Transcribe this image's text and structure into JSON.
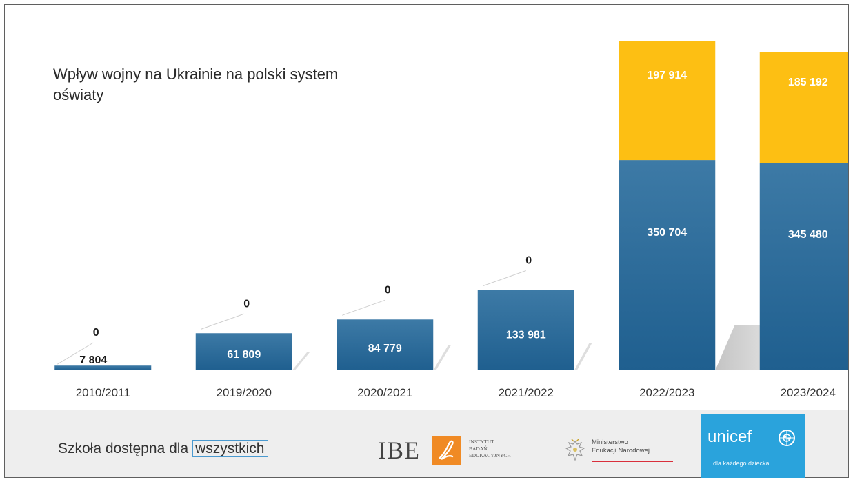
{
  "chart_data": {
    "type": "bar",
    "stacked": true,
    "title": "Wpływ wojny na Ukrainie na polski system oświaty",
    "categories": [
      "2010/2011",
      "2019/2020",
      "2020/2021",
      "2021/2022",
      "2022/2023",
      "2023/2024"
    ],
    "series": [
      {
        "values": [
          7804,
          61809,
          84779,
          133981,
          350704,
          345480
        ],
        "labels": [
          "7 804",
          "61 809",
          "84 779",
          "133 981",
          "350 704",
          "345 480"
        ],
        "color": "#1f5f8f"
      },
      {
        "values": [
          0,
          0,
          0,
          0,
          197914,
          185192
        ],
        "labels": [
          "0",
          "0",
          "0",
          "0",
          "197 914",
          "185 192"
        ],
        "color": "#fdbf13"
      }
    ],
    "grid": false,
    "legend": "none"
  },
  "footer": {
    "tagline_prefix": "Szkoła dostępna dla",
    "tagline_boxed": "wszystkich",
    "ibe": {
      "letters": "IBE",
      "subtitle": "INSTYTUT\nBADAŃ\nEDUKACYJNYCH"
    },
    "ministry": {
      "name": "Ministerstwo\nEdukacji Narodowej"
    },
    "unicef": {
      "word": "unicef",
      "tagline": "dla każdego dziecka"
    }
  },
  "colors": {
    "blue_bar": "#1f5f8f",
    "blue_bar_light": "#3d7aa6",
    "yellow_bar": "#fdbf13",
    "shadow": "#d6d6d6",
    "unicef_blue": "#2aa3dc",
    "ibe_orange": "#f08a24"
  },
  "icons": [
    "ibe-logo-icon",
    "polish-eagle-icon",
    "unicef-emblem-icon"
  ]
}
